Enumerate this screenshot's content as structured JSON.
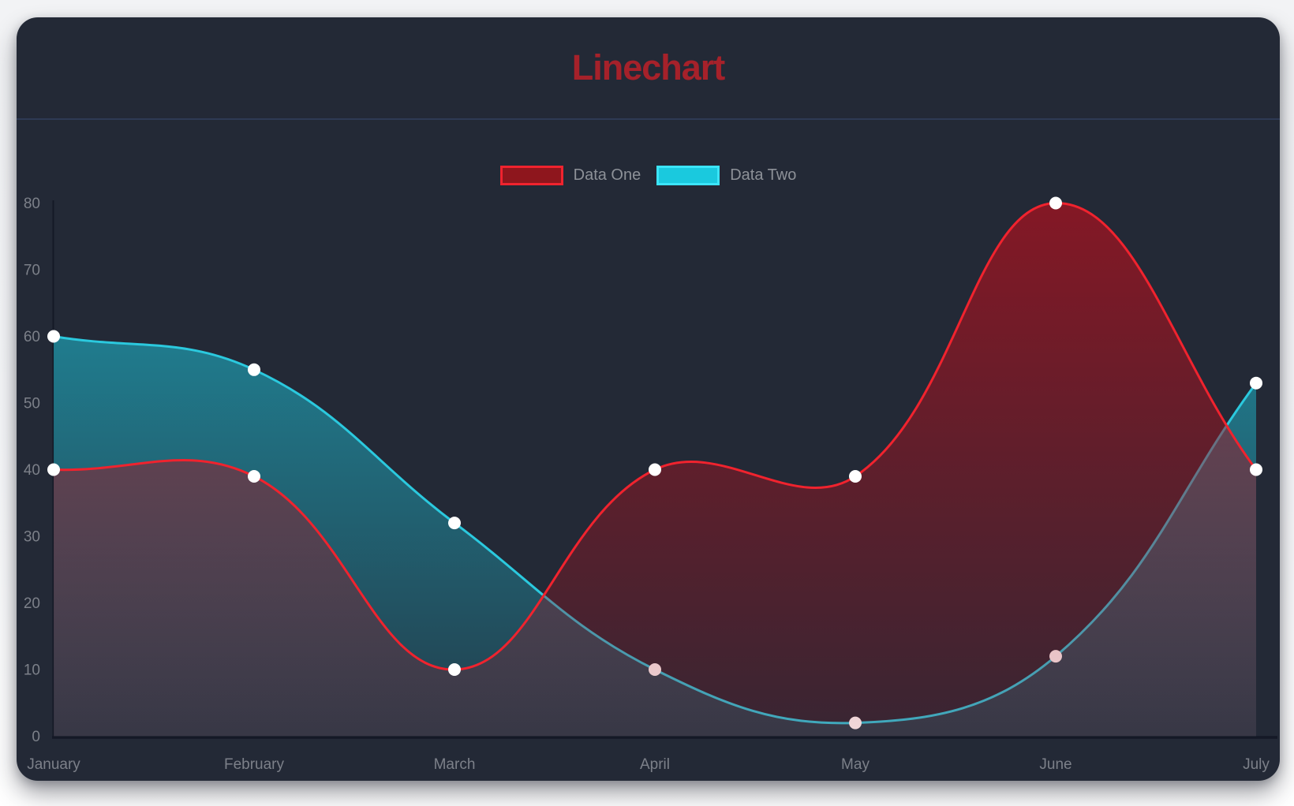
{
  "card": {
    "title": "Linechart"
  },
  "legend": {
    "items": [
      {
        "label": "Data One",
        "swatch_fill": "#8e161d",
        "swatch_border": "#f0232e"
      },
      {
        "label": "Data Two",
        "swatch_fill": "#1ac9de",
        "swatch_border": "#3ce4f9"
      }
    ]
  },
  "chart_data": {
    "type": "line",
    "title": "Linechart",
    "x_labels": [
      "January",
      "February",
      "March",
      "April",
      "May",
      "June",
      "July"
    ],
    "series": [
      {
        "name": "Data One",
        "values": [
          40,
          39,
          10,
          40,
          39,
          80,
          40
        ],
        "line_color": "#f0232e",
        "fill_color": "#a6121f",
        "fill_alpha_top": 0.74,
        "fill_alpha_bottom": 0.16,
        "point_color": "#ffffff"
      },
      {
        "name": "Data Two",
        "values": [
          60,
          55,
          32,
          10,
          2,
          12,
          53
        ],
        "line_color": "#2bc9de",
        "fill_color": "#1ec2d8",
        "fill_alpha_top": 0.68,
        "fill_alpha_bottom": 0.14,
        "point_color": "#ffffff"
      }
    ],
    "ylim": [
      0,
      80
    ],
    "y_ticks": [
      0,
      10,
      20,
      30,
      40,
      50,
      60,
      70,
      80
    ],
    "grid": false,
    "smooth_tension": 0.4,
    "fill": "origin",
    "legend_position": "top",
    "axis_color": "#141926",
    "tick_text_color": "#7c8089",
    "legend_text_color": "#8d9198",
    "title_color": "#a6212a",
    "card_background": "#232936",
    "page_background": "#f3f4f6",
    "divider_color": "#2e3a54"
  }
}
